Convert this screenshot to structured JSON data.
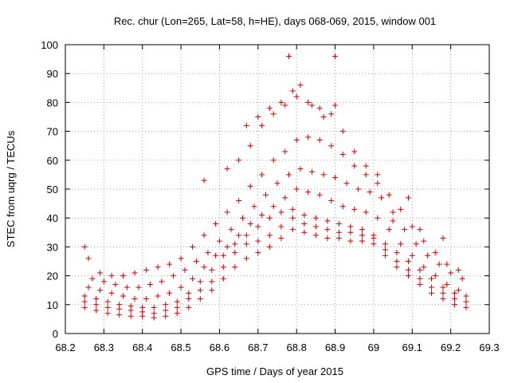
{
  "chart_data": {
    "type": "scatter",
    "title": "Rec. chur (Lon=265, Lat=58, h=HE), days 068-069, 2015, window 001",
    "xlabel": "GPS time / Days of year 2015",
    "ylabel": "STEC from uqrg / TECUs",
    "xlim": [
      68.2,
      69.3
    ],
    "ylim": [
      0,
      100
    ],
    "xticks": [
      "68.2",
      "68.3",
      "68.4",
      "68.5",
      "68.6",
      "68.7",
      "68.8",
      "68.9",
      "69",
      "69.1",
      "69.2",
      "69.3"
    ],
    "yticks": [
      "0",
      "10",
      "20",
      "30",
      "40",
      "50",
      "60",
      "70",
      "80",
      "90",
      "100"
    ],
    "grid": true,
    "marker": "plus",
    "color": "#cc0000",
    "tracks": [
      {
        "x": [
          68.25,
          68.28,
          68.31,
          68.34,
          68.37,
          68.4,
          68.43,
          68.46,
          68.49,
          68.52,
          68.55,
          68.58,
          68.61,
          68.64,
          68.67,
          68.7,
          68.73,
          68.76,
          68.79,
          68.82,
          68.85,
          68.88,
          68.91,
          68.94,
          68.97,
          69.0,
          69.03,
          69.06,
          69.09,
          69.12,
          69.15,
          69.18,
          69.21,
          69.24
        ],
        "y": [
          9,
          8,
          7,
          6.5,
          6,
          6,
          5.5,
          6,
          7,
          9,
          12,
          15,
          19,
          23,
          26,
          28,
          30,
          33,
          36,
          35,
          34,
          33,
          33,
          32,
          32,
          31,
          27,
          23,
          20,
          17,
          14,
          12,
          10,
          9
        ]
      },
      {
        "x": [
          68.25,
          68.28,
          68.31,
          68.34,
          68.37,
          68.4,
          68.43,
          68.46,
          68.49,
          68.52,
          68.55,
          68.58,
          68.61,
          68.64,
          68.67,
          68.7,
          68.73,
          68.76,
          68.79,
          68.82,
          68.85,
          68.88,
          68.91,
          68.94,
          68.97,
          69.0,
          69.03,
          69.06,
          69.09,
          69.12,
          69.15,
          69.18,
          69.21,
          69.24
        ],
        "y": [
          11,
          10,
          9,
          8.5,
          8,
          7.5,
          7,
          8,
          9,
          12,
          15,
          18,
          23,
          28,
          31,
          32,
          34,
          37,
          40,
          38,
          37,
          36,
          35,
          35,
          34,
          33,
          29,
          25,
          22,
          19,
          16,
          14,
          12,
          11
        ]
      },
      {
        "x": [
          68.25,
          68.28,
          68.31,
          68.34,
          68.37,
          68.4,
          68.43,
          68.46,
          68.49,
          68.52,
          68.55,
          68.58,
          68.61,
          68.64,
          68.67,
          68.7,
          68.73,
          68.76,
          68.79,
          68.82,
          68.85,
          68.88,
          68.91,
          68.94,
          68.97,
          69.0,
          69.03,
          69.06,
          69.09,
          69.12,
          69.15,
          69.18,
          69.21,
          69.24
        ],
        "y": [
          13,
          12,
          11,
          10,
          9.5,
          9,
          9,
          10,
          11,
          14,
          18,
          22,
          27,
          31,
          34,
          37,
          40,
          42,
          43,
          41,
          40,
          39,
          38,
          37,
          36,
          34,
          31,
          28,
          25,
          22,
          19,
          16,
          14,
          13
        ]
      },
      {
        "x": [
          68.26,
          68.29,
          68.32,
          68.35,
          68.38,
          68.41,
          68.44,
          68.47,
          68.5,
          68.53,
          68.56,
          68.59,
          68.62,
          68.65,
          68.68,
          68.71,
          68.74,
          68.77,
          68.8,
          68.83,
          68.86,
          68.89,
          68.92,
          68.95,
          68.98,
          69.01,
          69.04,
          69.07,
          69.1,
          69.13,
          69.16,
          69.19,
          69.22
        ],
        "y": [
          16,
          15,
          14,
          13,
          12,
          12,
          13,
          14,
          16,
          19,
          23,
          27,
          30,
          34,
          38,
          41,
          44,
          47,
          50,
          49,
          48,
          46,
          44,
          43,
          42,
          40,
          36,
          31,
          27,
          23,
          20,
          17,
          15
        ]
      },
      {
        "x": [
          68.27,
          68.3,
          68.33,
          68.36,
          68.39,
          68.42,
          68.45,
          68.48,
          68.51,
          68.54,
          68.57,
          68.6,
          68.63,
          68.66,
          68.69,
          68.72,
          68.75,
          68.78,
          68.81,
          68.84,
          68.87,
          68.9,
          68.93,
          68.96,
          68.99,
          69.02,
          69.05,
          69.08,
          69.11,
          69.14,
          69.17,
          69.2,
          69.23
        ],
        "y": [
          19,
          18,
          17,
          16,
          16,
          17,
          18,
          20,
          22,
          25,
          28,
          32,
          36,
          40,
          44,
          48,
          52,
          55,
          57,
          56,
          55,
          54,
          52,
          50,
          49,
          47,
          42,
          36,
          31,
          27,
          24,
          21,
          19
        ]
      },
      {
        "x": [
          68.29,
          68.32,
          68.35,
          68.38,
          68.41,
          68.44,
          68.47,
          68.5,
          68.53,
          68.56,
          68.59,
          68.62,
          68.65,
          68.68,
          68.71,
          68.74,
          68.77,
          68.8,
          68.83,
          68.86,
          68.89,
          68.92,
          68.95,
          68.98,
          69.01,
          69.04,
          69.07,
          69.1,
          69.13,
          69.16,
          69.19,
          69.22
        ],
        "y": [
          21,
          20,
          20,
          21,
          22,
          23,
          24,
          26,
          30,
          34,
          38,
          42,
          46,
          51,
          55,
          60,
          63,
          67,
          68,
          67,
          65,
          62,
          58,
          55,
          52,
          48,
          43,
          37,
          32,
          28,
          24,
          22
        ]
      },
      {
        "x": [
          68.62,
          68.65,
          68.68,
          68.71,
          68.74,
          68.77,
          68.8,
          68.83,
          68.86,
          68.89,
          68.92,
          68.95,
          68.98,
          69.01
        ],
        "y": [
          57,
          60,
          65,
          72,
          76,
          79,
          82,
          80,
          78,
          76,
          70,
          63,
          58,
          55
        ]
      },
      {
        "x": [
          68.67,
          68.7,
          68.73,
          68.76,
          68.79,
          68.81,
          68.84,
          68.87,
          68.9
        ],
        "y": [
          72,
          75,
          78,
          80,
          84,
          86,
          79,
          75,
          79
        ]
      },
      {
        "x": [
          68.25,
          68.26,
          68.56,
          68.78,
          68.9,
          69.05,
          69.09,
          69.12,
          69.18
        ],
        "y": [
          30,
          26,
          53,
          96,
          96,
          39,
          47,
          36,
          33
        ]
      }
    ]
  }
}
